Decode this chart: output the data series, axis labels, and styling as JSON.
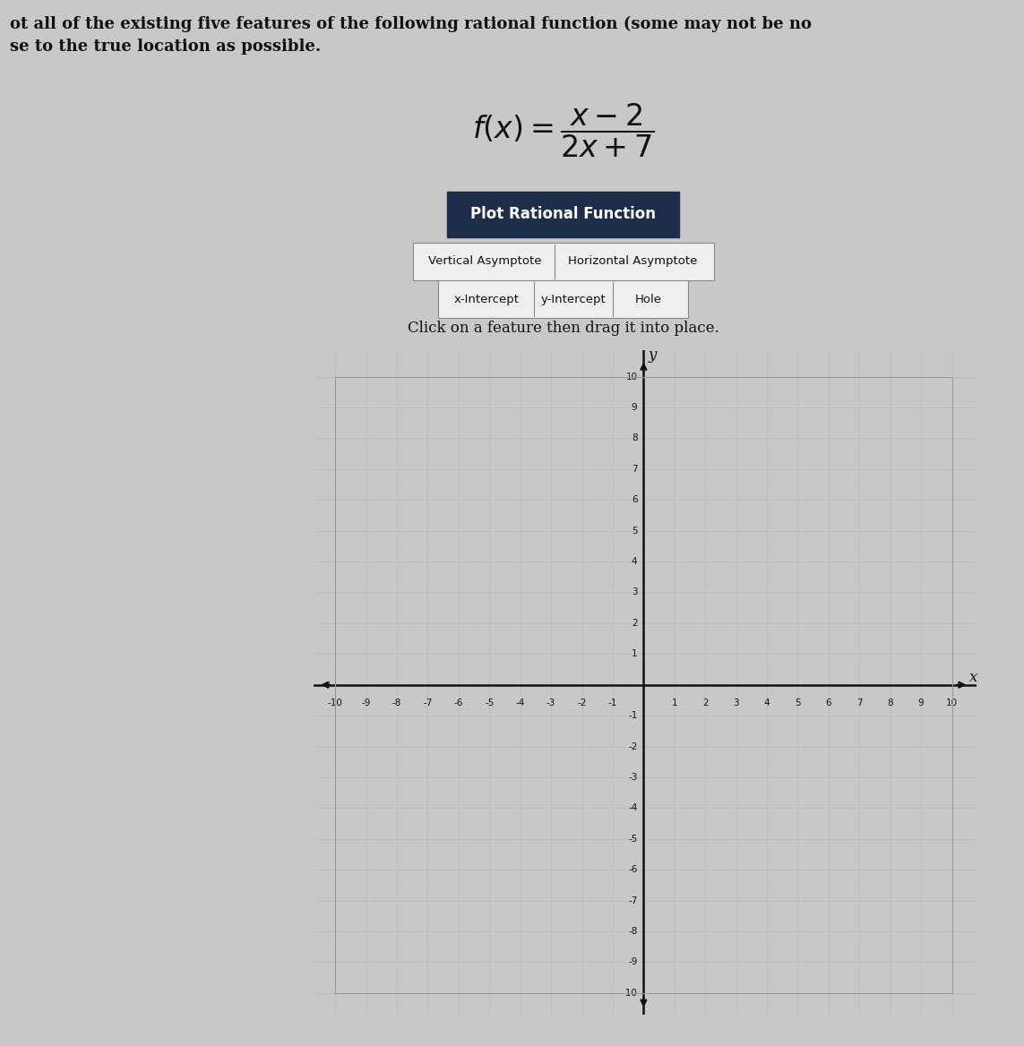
{
  "title_line1": "ot all of the existing five features of the following rational function (some may not be no",
  "title_line2": "se to the true location as possible.",
  "button_label": "Plot Rational Function",
  "button_bg": "#1e2d4a",
  "button_text_color": "#ffffff",
  "feature_buttons_row1": [
    "Vertical Asymptote",
    "Horizontal Asymptote"
  ],
  "feature_buttons_row2": [
    "x-Intercept",
    "y-Intercept",
    "Hole"
  ],
  "drag_text": "Click on a feature then drag it into place.",
  "grid_color": "#bbbbbb",
  "axis_color": "#111111",
  "background_color": "#c8c8c8",
  "plot_bg": "#d9d9d9",
  "xmin": -10,
  "xmax": 10,
  "ymin": -10,
  "ymax": 10,
  "xlabel": "x",
  "ylabel": "y"
}
